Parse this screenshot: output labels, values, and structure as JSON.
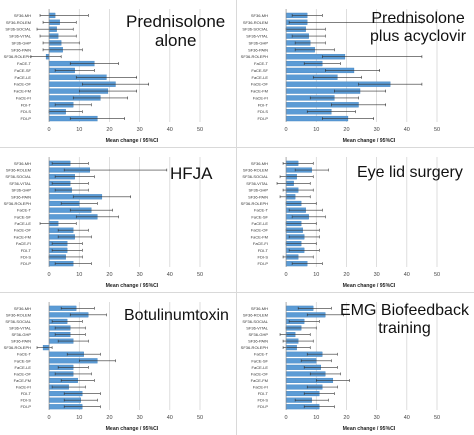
{
  "chart_data": [
    {
      "type": "bar",
      "title": "Prednisolone alone",
      "title_lines": [
        "Prednisolone",
        "alone"
      ],
      "xlabel": "Mean change / 95%CI",
      "ylabel": "",
      "xlim": [
        -5,
        50
      ],
      "ticks": [
        "0",
        "10",
        "20",
        "30",
        "40",
        "50"
      ],
      "tick_values": [
        0,
        10,
        20,
        30,
        40,
        50
      ],
      "bar_color": "#5b9bd5",
      "grid": true,
      "categories": [
        "SF36-MH",
        "SF36-ROLEM",
        "SF36-SOCIAL",
        "SF36-VITAL",
        "SF36-GHP",
        "SF36-PAIN",
        "SF36-ROLEPH",
        "FaCE-T",
        "FaCE-SF",
        "FaCE-LE",
        "FaCE-OF",
        "FaCE-FM",
        "FaCE-FI",
        "FDI-T",
        "FDI-S",
        "FDI-P"
      ],
      "values": [
        2.0,
        3.5,
        2.5,
        3.0,
        4.0,
        4.5,
        -1.0,
        15.0,
        8.5,
        19.0,
        22.0,
        19.5,
        17.0,
        8.0,
        5.5,
        16.0
      ],
      "ci_low": [
        -3.0,
        -2.0,
        -4.0,
        -3.0,
        -2.0,
        -2.0,
        -6.0,
        7.0,
        2.0,
        9.0,
        11.0,
        10.0,
        8.0,
        2.0,
        0.0,
        7.0
      ],
      "ci_high": [
        13.0,
        9.0,
        8.0,
        9.0,
        10.0,
        11.0,
        4.0,
        23.0,
        15.0,
        29.0,
        33.0,
        29.0,
        26.0,
        14.0,
        11.0,
        25.0
      ]
    },
    {
      "type": "bar",
      "title": "Prednisolone plus acyclovir",
      "title_lines": [
        "Prednisolone",
        "plus acyclovir"
      ],
      "xlabel": "Mean change / 95%CI",
      "ylabel": "",
      "xlim": [
        -5,
        50
      ],
      "ticks": [
        "0",
        "10",
        "20",
        "30",
        "40",
        "50"
      ],
      "tick_values": [
        0,
        10,
        20,
        30,
        40,
        50
      ],
      "bar_color": "#5b9bd5",
      "grid": true,
      "categories": [
        "SF36-MH",
        "SF36-ROLEM",
        "SF36-SOCIAL",
        "SF36-VITAL",
        "SF36-GHP",
        "SF36-PAIN",
        "SF36-ROLEPH",
        "FaCE-T",
        "FaCE-SF",
        "FaCE-LE",
        "FaCE-OF",
        "FaCE-FM",
        "FaCE-FI",
        "FDI-T",
        "FDI-S",
        "FDI-P"
      ],
      "values": [
        7.0,
        7.0,
        6.5,
        7.5,
        8.0,
        9.5,
        19.5,
        12.0,
        22.5,
        17.0,
        34.5,
        24.5,
        16.0,
        24.0,
        15.0,
        20.5
      ],
      "ci_low": [
        2.0,
        1.0,
        0.0,
        2.0,
        3.0,
        3.0,
        12.0,
        6.0,
        13.0,
        9.0,
        24.0,
        16.0,
        8.0,
        15.0,
        7.0,
        12.0
      ],
      "ci_high": [
        12.0,
        45.0,
        13.0,
        13.0,
        13.0,
        16.0,
        45.0,
        18.0,
        31.0,
        25.0,
        45.0,
        33.0,
        24.0,
        33.0,
        23.0,
        29.0
      ]
    },
    {
      "type": "bar",
      "title": "HFJA",
      "title_lines": [
        "HFJA"
      ],
      "xlabel": "Mean change / 95%CI",
      "ylabel": "",
      "xlim": [
        -5,
        50
      ],
      "ticks": [
        "0",
        "10",
        "20",
        "30",
        "40",
        "50"
      ],
      "tick_values": [
        0,
        10,
        20,
        30,
        40,
        50
      ],
      "bar_color": "#5b9bd5",
      "grid": true,
      "categories": [
        "SF36-MH",
        "SF36-ROLEM",
        "SF36-SOCIAL",
        "SF36-VITAL",
        "SF36-GHP",
        "SF36-PAIN",
        "SF36-ROLEPH",
        "FaCE-T",
        "FaCE-SF",
        "FaCE-LE",
        "FaCE-OF",
        "FaCE-FM",
        "FaCE-FI",
        "FDI-T",
        "FDI-S",
        "FDI-P"
      ],
      "values": [
        7.0,
        13.5,
        8.5,
        7.0,
        7.5,
        17.5,
        10.0,
        14.0,
        16.0,
        3.0,
        8.0,
        8.5,
        6.0,
        6.0,
        5.5,
        8.0
      ],
      "ci_low": [
        1.0,
        5.0,
        2.0,
        1.0,
        2.0,
        8.0,
        4.0,
        7.0,
        9.0,
        -3.0,
        3.0,
        3.0,
        1.0,
        1.0,
        0.0,
        2.0
      ],
      "ci_high": [
        13.0,
        39.0,
        15.0,
        13.0,
        13.0,
        27.0,
        16.0,
        21.0,
        23.0,
        9.0,
        13.0,
        14.0,
        11.0,
        11.0,
        11.0,
        14.0
      ]
    },
    {
      "type": "bar",
      "title": "Eye lid surgery",
      "title_lines": [
        "Eye lid surgery"
      ],
      "xlabel": "Mean change / 95%CI",
      "ylabel": "",
      "xlim": [
        -5,
        50
      ],
      "ticks": [
        "0",
        "10",
        "20",
        "30",
        "40",
        "50"
      ],
      "tick_values": [
        0,
        10,
        20,
        30,
        40,
        50
      ],
      "bar_color": "#5b9bd5",
      "grid": true,
      "categories": [
        "SF36-MH",
        "SF36-ROLEM",
        "SF36-SOCIAL",
        "SF36-VITAL",
        "SF36-GHP",
        "SF36-PAIN",
        "SF36-ROLEPH",
        "FaCE-T",
        "FaCE-SF",
        "FaCE-LE",
        "FaCE-OF",
        "FaCE-FM",
        "FaCE-FI",
        "FDI-T",
        "FDI-S",
        "FDI-P"
      ],
      "values": [
        4.0,
        8.5,
        3.5,
        2.5,
        4.0,
        3.0,
        5.0,
        6.5,
        7.5,
        5.0,
        5.5,
        6.0,
        5.0,
        6.0,
        4.0,
        7.0
      ],
      "ci_low": [
        -1.0,
        3.0,
        -2.0,
        -3.0,
        -1.0,
        -2.0,
        0.0,
        1.0,
        2.0,
        0.0,
        0.0,
        1.0,
        0.0,
        1.0,
        -1.0,
        2.0
      ],
      "ci_high": [
        9.0,
        14.0,
        9.0,
        8.0,
        9.0,
        8.0,
        10.0,
        12.0,
        13.0,
        10.0,
        11.0,
        11.0,
        10.0,
        11.0,
        9.0,
        12.0
      ]
    },
    {
      "type": "bar",
      "title": "Botulinumtoxin",
      "title_lines": [
        "Botulinumtoxin"
      ],
      "xlabel": "Mean change / 95%CI",
      "ylabel": "",
      "xlim": [
        -5,
        50
      ],
      "ticks": [
        "0",
        "10",
        "20",
        "30",
        "40",
        "50"
      ],
      "tick_values": [
        0,
        10,
        20,
        30,
        40,
        50
      ],
      "bar_color": "#5b9bd5",
      "grid": true,
      "categories": [
        "SF36-MH",
        "SF36-ROLEM",
        "SF36-SOCIAL",
        "SF36-VITAL",
        "SF36-GHP",
        "SF36-PAIN",
        "SF36-ROLEPH",
        "FaCE-T",
        "FaCE-SF",
        "FaCE-LE",
        "FaCE-OF",
        "FaCE-FM",
        "FaCE-FI",
        "FDI-T",
        "FDI-S",
        "FDI-P"
      ],
      "values": [
        9.0,
        13.0,
        6.0,
        7.0,
        7.0,
        8.0,
        -2.0,
        11.5,
        16.0,
        8.0,
        8.0,
        9.5,
        6.5,
        11.0,
        10.5,
        11.0
      ],
      "ci_low": [
        4.0,
        7.0,
        1.0,
        2.0,
        2.0,
        3.0,
        -4.0,
        6.0,
        10.0,
        3.0,
        2.0,
        4.0,
        1.0,
        5.0,
        5.0,
        5.0
      ],
      "ci_high": [
        15.0,
        19.0,
        11.0,
        12.0,
        12.0,
        13.0,
        1.0,
        17.0,
        22.0,
        13.0,
        14.0,
        15.0,
        12.0,
        17.0,
        16.0,
        17.0
      ]
    },
    {
      "type": "bar",
      "title": "EMG Biofeedback training",
      "title_lines": [
        "EMG Biofeedback",
        "training"
      ],
      "xlabel": "Mean change / 95%CI",
      "ylabel": "",
      "xlim": [
        -5,
        50
      ],
      "ticks": [
        "0",
        "10",
        "20",
        "30",
        "40",
        "50"
      ],
      "tick_values": [
        0,
        10,
        20,
        30,
        40,
        50
      ],
      "bar_color": "#5b9bd5",
      "grid": true,
      "categories": [
        "SF36-MH",
        "SF36-ROLEM",
        "SF36-SOCIAL",
        "SF36-VITAL",
        "SF36-GHP",
        "SF36-PAIN",
        "SF36-ROLEPH",
        "FaCE-T",
        "FaCE-SF",
        "FaCE-LE",
        "FaCE-OF",
        "FaCE-FM",
        "FaCE-FI",
        "FDI-T",
        "FDI-S",
        "FDI-P"
      ],
      "values": [
        9.0,
        13.0,
        6.0,
        5.0,
        3.0,
        4.0,
        3.5,
        12.0,
        10.0,
        11.5,
        13.0,
        15.5,
        12.0,
        11.0,
        8.5,
        11.0
      ],
      "ci_low": [
        4.0,
        7.0,
        1.0,
        0.0,
        -2.0,
        -1.0,
        -1.0,
        7.0,
        5.0,
        6.0,
        8.0,
        10.0,
        7.0,
        6.0,
        3.0,
        6.0
      ],
      "ci_high": [
        15.0,
        19.0,
        11.0,
        10.0,
        8.0,
        9.0,
        8.0,
        17.0,
        15.0,
        17.0,
        18.0,
        21.0,
        17.0,
        16.0,
        14.0,
        16.0
      ]
    }
  ]
}
